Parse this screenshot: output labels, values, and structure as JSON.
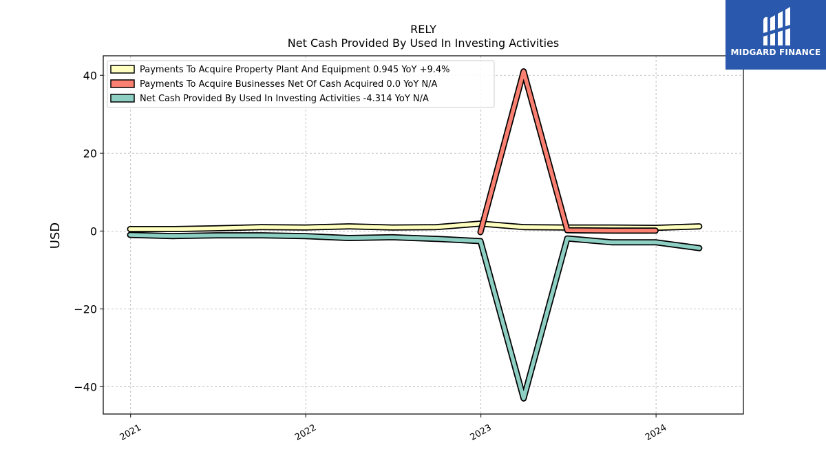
{
  "brand": {
    "name": "MIDGARD FINANCE",
    "logo_icon": "midgard-logo-icon",
    "color": "#2a58ac"
  },
  "chart_data": {
    "type": "line",
    "title": "RELY",
    "subtitle": "Net Cash Provided By Used In Investing Activities",
    "xlabel": "",
    "ylabel": "USD",
    "ylim": [
      -47,
      45
    ],
    "xlim": [
      "2020-11-05",
      "2024-07-01"
    ],
    "y_ticks": [
      40,
      20,
      0,
      -20,
      -40
    ],
    "y_tick_labels": [
      "40",
      "20",
      "0",
      "−20",
      "−40"
    ],
    "x_ticks": [
      "2021-01-01",
      "2022-01-01",
      "2023-01-01",
      "2024-01-01"
    ],
    "x_tick_labels": [
      "2021",
      "2022",
      "2023",
      "2024"
    ],
    "grid": true,
    "legend_position": "upper-left",
    "series": [
      {
        "name": "Payments To Acquire Property Plant And Equipment  0.945 YoY +9.4%",
        "color": "#ffffbf",
        "x": [
          "2020-12-31",
          "2021-03-31",
          "2021-06-30",
          "2021-09-30",
          "2021-12-31",
          "2022-03-31",
          "2022-06-30",
          "2022-09-30",
          "2022-12-31",
          "2023-03-31",
          "2023-06-30",
          "2023-09-30",
          "2023-12-31",
          "2024-03-31"
        ],
        "values": [
          0.5,
          0.5,
          0.7,
          1.0,
          0.9,
          1.2,
          0.9,
          1.0,
          1.9,
          1.0,
          0.9,
          0.9,
          0.8,
          1.2
        ]
      },
      {
        "name": "Payments To Acquire Businesses Net Of Cash Acquired  0.0 YoY N/A",
        "color": "#fa8072",
        "x": [
          "2022-12-31",
          "2023-03-31",
          "2023-06-30",
          "2023-09-30",
          "2023-12-31"
        ],
        "values": [
          -0.3,
          41.0,
          0.2,
          0.1,
          0.1
        ]
      },
      {
        "name": "Net Cash Provided By Used In Investing Activities  -4.314 YoY N/A",
        "color": "#8ecfc3",
        "x": [
          "2020-12-31",
          "2021-03-31",
          "2021-06-30",
          "2021-09-30",
          "2021-12-31",
          "2022-03-31",
          "2022-06-30",
          "2022-09-30",
          "2022-12-31",
          "2023-03-31",
          "2023-06-30",
          "2023-09-30",
          "2023-12-31",
          "2024-03-31"
        ],
        "values": [
          -1.0,
          -1.3,
          -1.1,
          -1.1,
          -1.3,
          -1.8,
          -1.6,
          -2.0,
          -2.6,
          -43.0,
          -1.9,
          -2.9,
          -2.9,
          -4.4
        ]
      }
    ]
  }
}
